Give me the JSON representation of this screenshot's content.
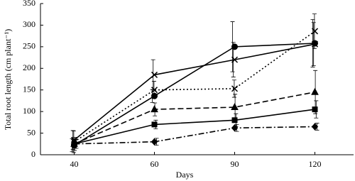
{
  "chart_data": {
    "type": "line",
    "x_label": "Days",
    "y_label": "Total root length (cm plant⁻¹)",
    "categories": [
      "40",
      "60",
      "90",
      "120"
    ],
    "ylim": [
      0,
      350
    ],
    "yticks": [
      0,
      50,
      100,
      150,
      200,
      250,
      300,
      350
    ],
    "series": [
      {
        "color": "#000000",
        "marker": "circle",
        "dash": "solid",
        "values": [
          22,
          136,
          250,
          258
        ],
        "errors": [
          15,
          15,
          58,
          55
        ]
      },
      {
        "color": "#000000",
        "marker": "x",
        "dash": "solid",
        "values": [
          34,
          185,
          220,
          256
        ],
        "errors": [
          22,
          35,
          40,
          50
        ]
      },
      {
        "color": "#000000",
        "marker": "x",
        "dash": "dotted",
        "values": [
          30,
          150,
          153,
          286
        ],
        "errors": [
          25,
          20,
          20,
          40
        ]
      },
      {
        "color": "#000000",
        "marker": "triangle",
        "dash": "dashed",
        "values": [
          25,
          105,
          110,
          145
        ],
        "errors": [
          15,
          15,
          30,
          50
        ]
      },
      {
        "color": "#000000",
        "marker": "square",
        "dash": "solid",
        "values": [
          25,
          70,
          80,
          105
        ],
        "errors": [
          10,
          10,
          15,
          20
        ]
      },
      {
        "color": "#000000",
        "marker": "diamond",
        "dash": "dashdot",
        "values": [
          25,
          30,
          62,
          65
        ],
        "errors": [
          10,
          8,
          8,
          8
        ]
      }
    ]
  }
}
